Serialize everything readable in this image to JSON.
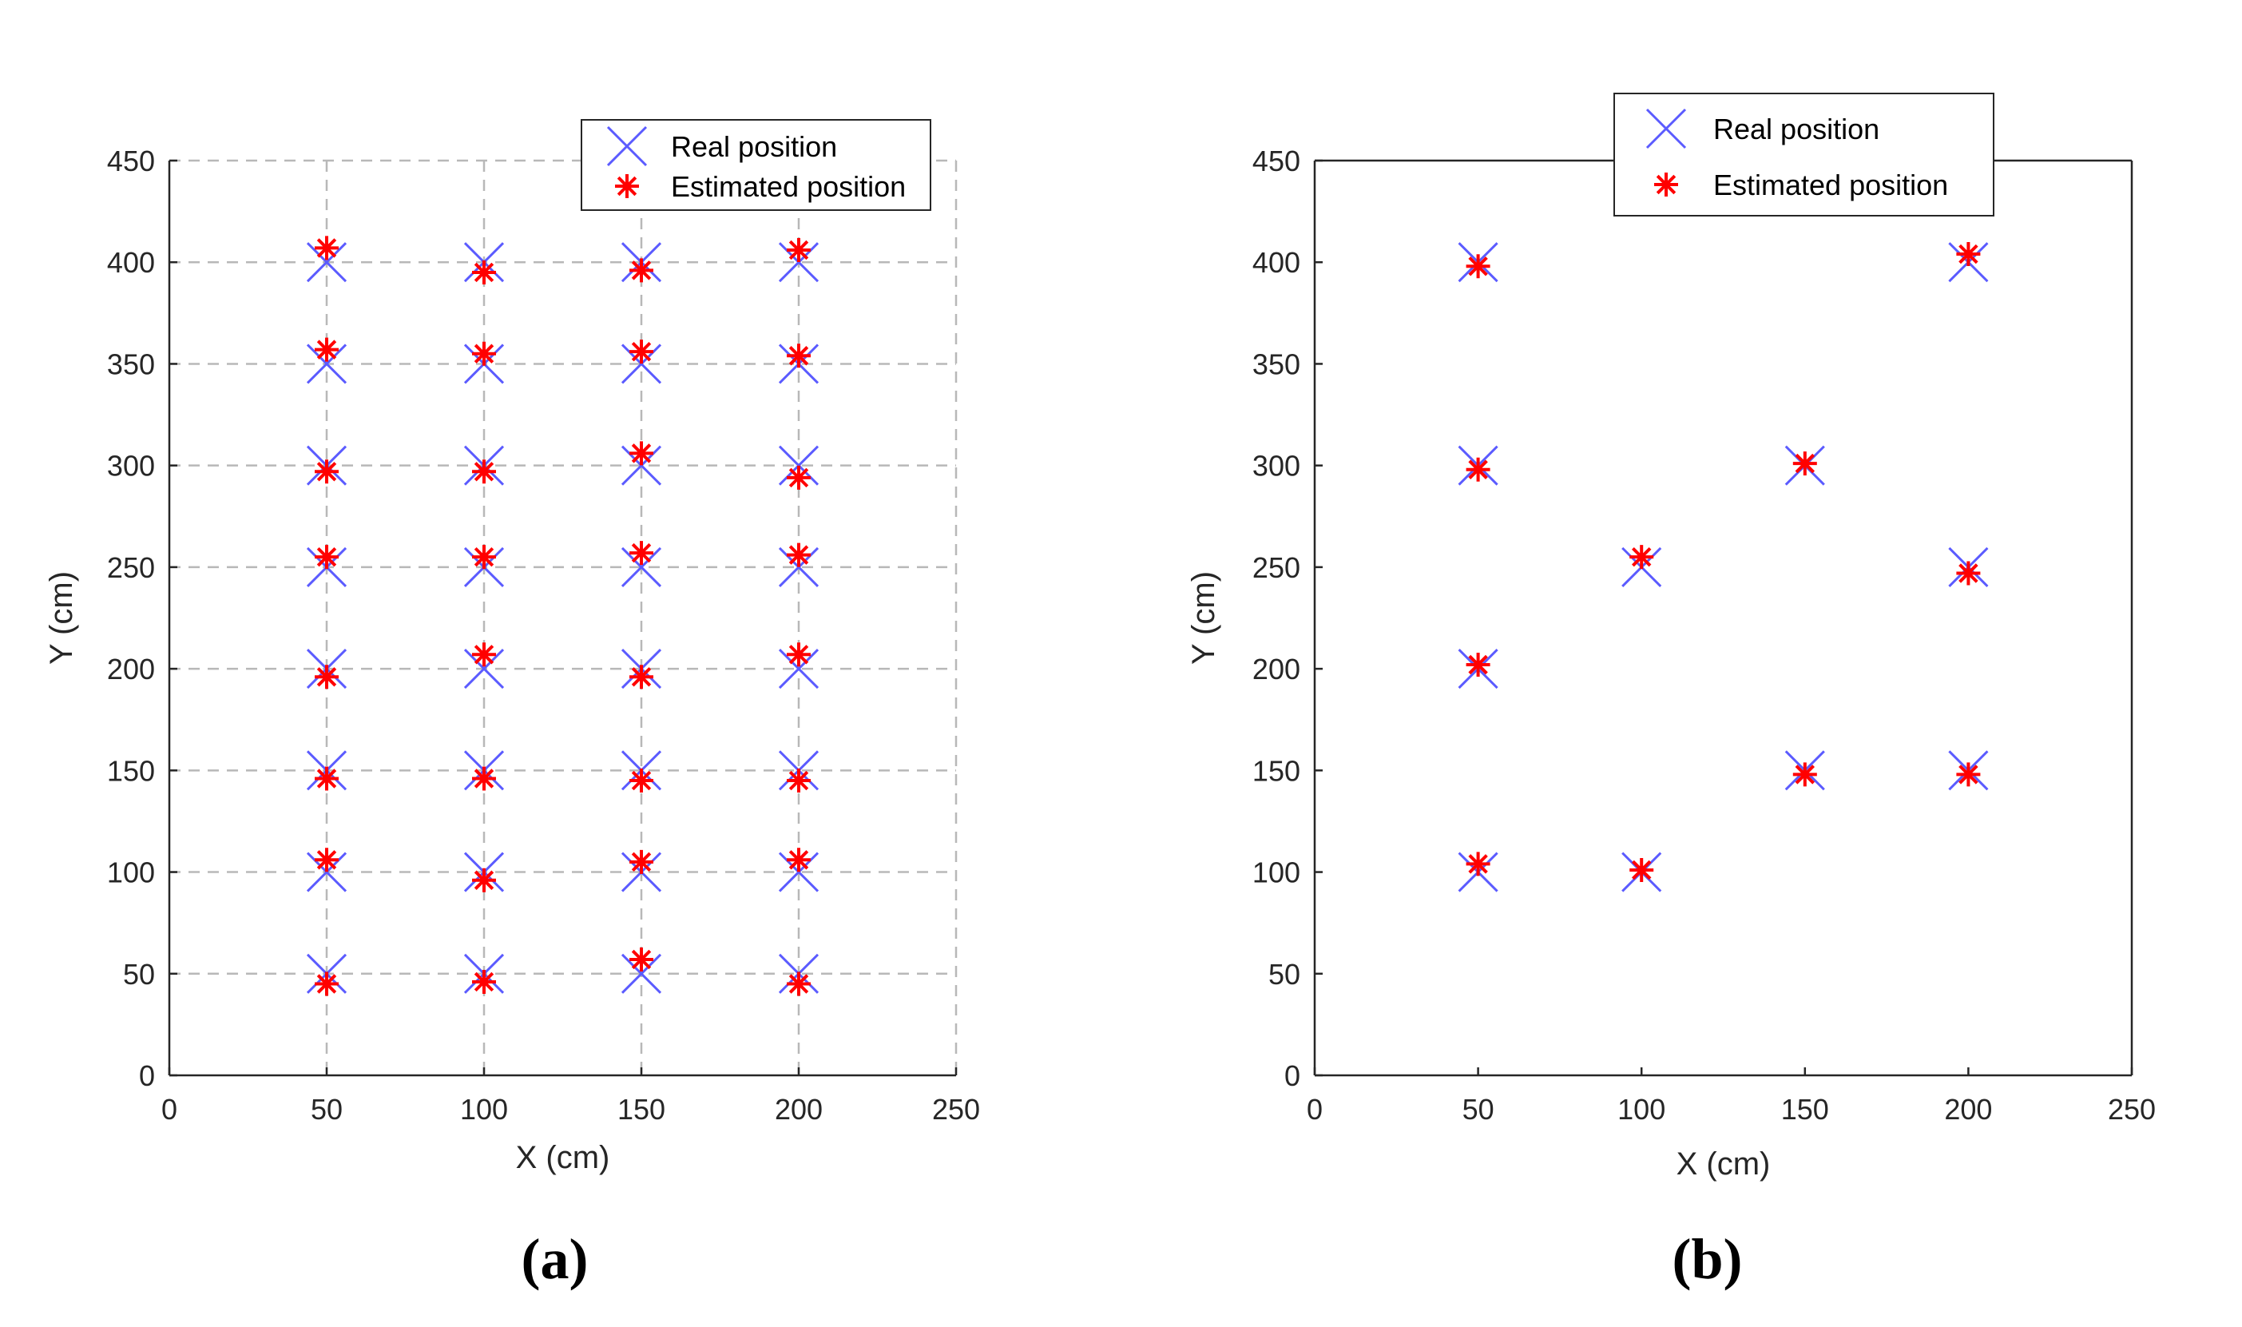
{
  "chart_data": [
    {
      "type": "scatter",
      "caption": "(a)",
      "xlabel": "X (cm)",
      "ylabel": "Y (cm)",
      "xlim": [
        0,
        250
      ],
      "ylim": [
        0,
        450
      ],
      "xticks": [
        0,
        50,
        100,
        150,
        200,
        250
      ],
      "yticks": [
        0,
        50,
        100,
        150,
        200,
        250,
        300,
        350,
        400,
        450
      ],
      "xtick_labels": [
        "0",
        "50",
        "100",
        "150",
        "200",
        "250"
      ],
      "ytick_labels": [
        "0",
        "50",
        "100",
        "150",
        "200",
        "250",
        "300",
        "350",
        "400",
        "450"
      ],
      "grid": true,
      "legend": {
        "location": "top-right",
        "entries": [
          "Real position",
          "Estimated position"
        ]
      },
      "series": [
        {
          "name": "Real position",
          "marker": "x",
          "color": "#5b5bff",
          "points": [
            [
              50,
              50
            ],
            [
              50,
              100
            ],
            [
              50,
              150
            ],
            [
              50,
              200
            ],
            [
              50,
              250
            ],
            [
              50,
              300
            ],
            [
              50,
              350
            ],
            [
              50,
              400
            ],
            [
              100,
              50
            ],
            [
              100,
              100
            ],
            [
              100,
              150
            ],
            [
              100,
              200
            ],
            [
              100,
              250
            ],
            [
              100,
              300
            ],
            [
              100,
              350
            ],
            [
              100,
              400
            ],
            [
              150,
              50
            ],
            [
              150,
              100
            ],
            [
              150,
              150
            ],
            [
              150,
              200
            ],
            [
              150,
              250
            ],
            [
              150,
              300
            ],
            [
              150,
              350
            ],
            [
              150,
              400
            ],
            [
              200,
              50
            ],
            [
              200,
              100
            ],
            [
              200,
              150
            ],
            [
              200,
              200
            ],
            [
              200,
              250
            ],
            [
              200,
              300
            ],
            [
              200,
              350
            ],
            [
              200,
              400
            ]
          ]
        },
        {
          "name": "Estimated position",
          "marker": "*",
          "color": "#ff0000",
          "points": [
            [
              50,
              45
            ],
            [
              50,
              106
            ],
            [
              50,
              146
            ],
            [
              50,
              196
            ],
            [
              50,
              255
            ],
            [
              50,
              297
            ],
            [
              50,
              357
            ],
            [
              50,
              407
            ],
            [
              100,
              46
            ],
            [
              100,
              96
            ],
            [
              100,
              146
            ],
            [
              100,
              207
            ],
            [
              100,
              255
            ],
            [
              100,
              297
            ],
            [
              100,
              355
            ],
            [
              100,
              395
            ],
            [
              150,
              57
            ],
            [
              150,
              105
            ],
            [
              150,
              145
            ],
            [
              150,
              196
            ],
            [
              150,
              257
            ],
            [
              150,
              306
            ],
            [
              150,
              356
            ],
            [
              150,
              396
            ],
            [
              200,
              45
            ],
            [
              200,
              106
            ],
            [
              200,
              145
            ],
            [
              200,
              207
            ],
            [
              200,
              256
            ],
            [
              200,
              294
            ],
            [
              200,
              354
            ],
            [
              200,
              406
            ]
          ]
        }
      ]
    },
    {
      "type": "scatter",
      "caption": "(b)",
      "xlabel": "X (cm)",
      "ylabel": "Y (cm)",
      "xlim": [
        0,
        250
      ],
      "ylim": [
        0,
        450
      ],
      "xticks": [
        0,
        50,
        100,
        150,
        200,
        250
      ],
      "yticks": [
        0,
        50,
        100,
        150,
        200,
        250,
        300,
        350,
        400,
        450
      ],
      "xtick_labels": [
        "0",
        "50",
        "100",
        "150",
        "200",
        "250"
      ],
      "ytick_labels": [
        "0",
        "50",
        "100",
        "150",
        "200",
        "250",
        "300",
        "350",
        "400",
        "450"
      ],
      "grid": false,
      "legend": {
        "location": "top-right-outside",
        "entries": [
          "Real position",
          "Estimated position"
        ]
      },
      "series": [
        {
          "name": "Real position",
          "marker": "x",
          "color": "#5b5bff",
          "points": [
            [
              50,
              100
            ],
            [
              50,
              200
            ],
            [
              50,
              300
            ],
            [
              50,
              400
            ],
            [
              100,
              100
            ],
            [
              100,
              250
            ],
            [
              150,
              150
            ],
            [
              150,
              300
            ],
            [
              200,
              150
            ],
            [
              200,
              250
            ],
            [
              200,
              400
            ]
          ]
        },
        {
          "name": "Estimated position",
          "marker": "*",
          "color": "#ff0000",
          "points": [
            [
              50,
              104
            ],
            [
              50,
              202
            ],
            [
              50,
              298
            ],
            [
              50,
              398
            ],
            [
              100,
              101
            ],
            [
              100,
              255
            ],
            [
              150,
              148
            ],
            [
              150,
              301
            ],
            [
              200,
              148
            ],
            [
              200,
              247
            ],
            [
              200,
              404
            ]
          ]
        }
      ]
    }
  ]
}
